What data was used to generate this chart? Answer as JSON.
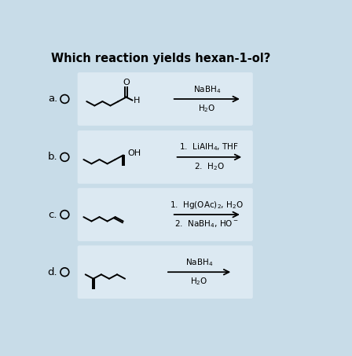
{
  "title": "Which reaction yields hexan-1-ol?",
  "background_color": "#c8dce8",
  "panel_color": "#dce9f2",
  "title_fontsize": 10.5,
  "options": [
    "a.",
    "b.",
    "c.",
    "d."
  ],
  "reagents_a_top": "NaBH$_4$",
  "reagents_a_bot": "H$_2$O",
  "reagents_b_top": "1.  LiAlH$_4$, THF",
  "reagents_b_bot": "2.  H$_2$O",
  "reagents_c_top": "1.  Hg(OAc)$_2$, H$_2$O",
  "reagents_c_bot": "2.  NaBH$_4$, HO$^-$",
  "reagents_d_top": "NaBH$_4$",
  "reagents_d_bot": "H$_2$O"
}
